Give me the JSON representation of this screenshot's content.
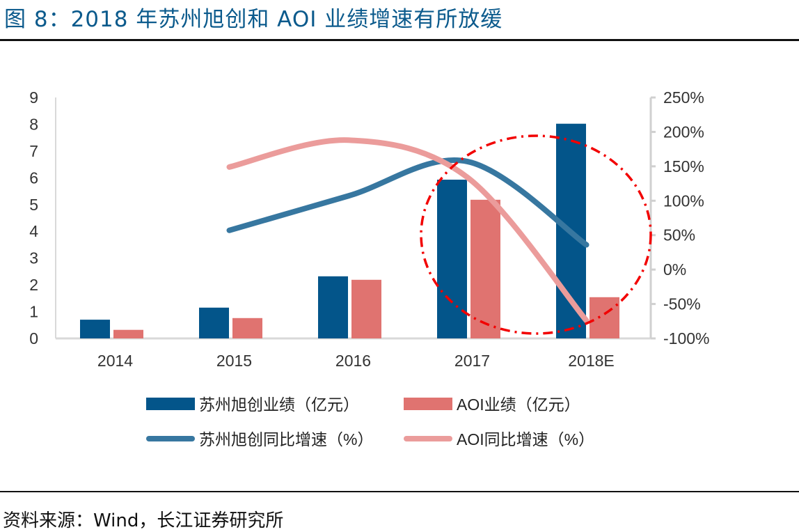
{
  "title": "图 8：2018 年苏州旭创和 AOI 业绩增速有所放缓",
  "source": "资料来源：Wind，长江证券研究所",
  "chart_data": {
    "type": "bar+line",
    "categories": [
      "2014",
      "2015",
      "2016",
      "2017",
      "2018E"
    ],
    "y_left": {
      "min": 0,
      "max": 9,
      "ticks": [
        "0",
        "1",
        "2",
        "3",
        "4",
        "5",
        "6",
        "7",
        "8",
        "9"
      ]
    },
    "y_right": {
      "min": -100,
      "max": 250,
      "ticks": [
        "-100%",
        "-50%",
        "0%",
        "50%",
        "100%",
        "150%",
        "200%",
        "250%"
      ]
    },
    "series": [
      {
        "name": "苏州旭创业绩（亿元）",
        "type": "bar",
        "axis": "left",
        "color": "#03558a",
        "values": [
          0.7,
          1.15,
          2.32,
          5.93,
          8.02
        ]
      },
      {
        "name": "AOI业绩（亿元）",
        "type": "bar",
        "axis": "left",
        "color": "#e07370",
        "values": [
          0.32,
          0.76,
          2.19,
          5.18,
          1.54
        ]
      },
      {
        "name": "苏州旭创同比增速（%）",
        "type": "line",
        "axis": "right",
        "color": "#3777a0",
        "values": [
          null,
          57,
          107,
          157,
          36
        ]
      },
      {
        "name": "AOI同比增速（%）",
        "type": "line",
        "axis": "right",
        "color": "#eb9c9b",
        "values": [
          null,
          149,
          188,
          134,
          -74
        ]
      }
    ],
    "annotation": "red dash-dot ellipse highlighting 2017–2018E",
    "legend": "bottom"
  }
}
